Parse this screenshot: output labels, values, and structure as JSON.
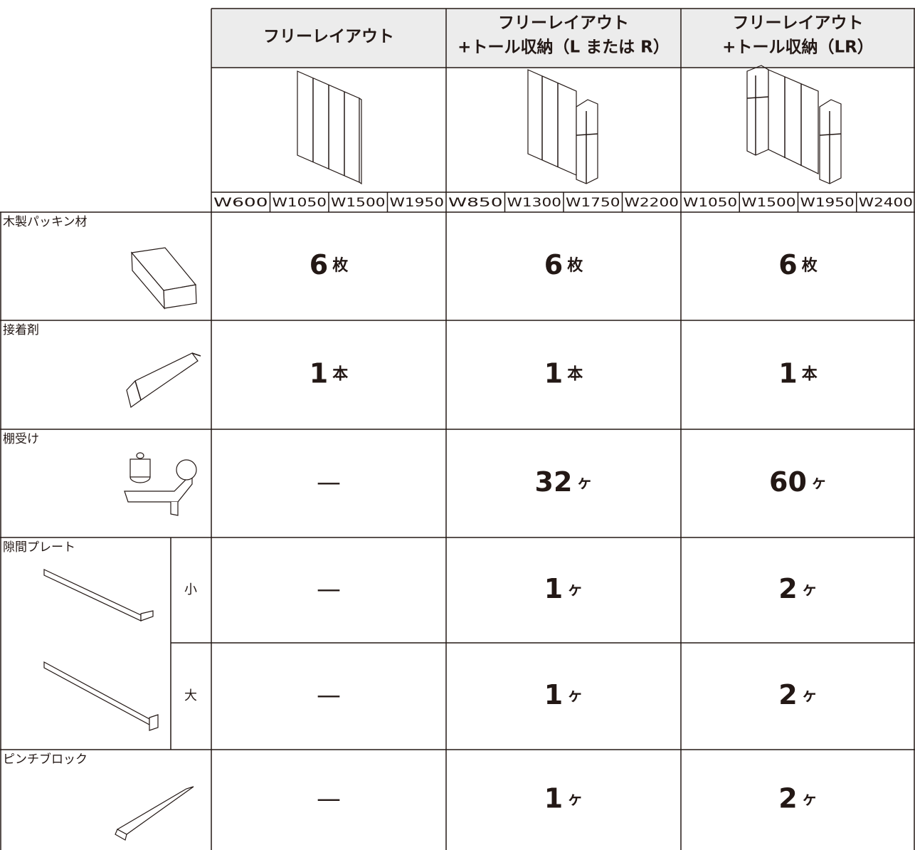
{
  "columns": [
    {
      "title": [
        "フリーレイアウト"
      ],
      "widths": [
        "W600",
        "W1050",
        "W1500",
        "W1950"
      ]
    },
    {
      "title": [
        "フリーレイアウト",
        "+トール収納（L または R）"
      ],
      "widths": [
        "W850",
        "W1300",
        "W1750",
        "W2200"
      ]
    },
    {
      "title": [
        "フリーレイアウト",
        "+トール収納（LR）"
      ],
      "widths": [
        "W1050",
        "W1500",
        "W1950",
        "W2400"
      ]
    }
  ],
  "rows": [
    {
      "label": "木製パッキン材",
      "cells": [
        {
          "count": 6,
          "unit": "枚"
        },
        {
          "count": 6,
          "unit": "枚"
        },
        {
          "count": 6,
          "unit": "枚"
        }
      ]
    },
    {
      "label": "接着剤",
      "cells": [
        {
          "count": 1,
          "unit": "本"
        },
        {
          "count": 1,
          "unit": "本"
        },
        {
          "count": 1,
          "unit": "本"
        }
      ]
    },
    {
      "label": "棚受け",
      "cells": [
        "—",
        {
          "count": 32,
          "unit": "ヶ"
        },
        {
          "count": 60,
          "unit": "ヶ"
        }
      ]
    },
    {
      "label": "隙間プレート",
      "size": "小",
      "cells": [
        "—",
        {
          "count": 1,
          "unit": "ヶ"
        },
        {
          "count": 2,
          "unit": "ヶ"
        }
      ]
    },
    {
      "size": "大",
      "cells": [
        "—",
        {
          "count": 1,
          "unit": "ヶ"
        },
        {
          "count": 2,
          "unit": "ヶ"
        }
      ]
    },
    {
      "label": "ピンチブロック",
      "cells": [
        "—",
        {
          "count": 1,
          "unit": "ヶ"
        },
        {
          "count": 2,
          "unit": "ヶ"
        }
      ]
    }
  ]
}
